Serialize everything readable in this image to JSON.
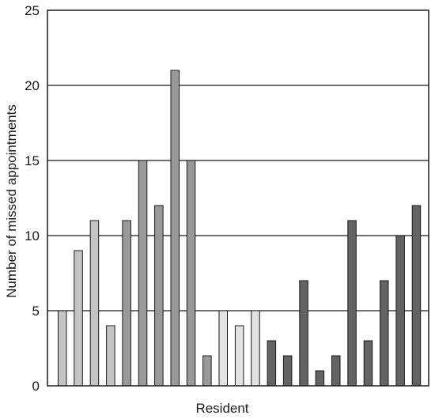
{
  "chart_data": {
    "type": "bar",
    "xlabel": "Resident",
    "ylabel": "Number of missed appointments",
    "ylim": [
      0,
      25
    ],
    "yticks": [
      0,
      5,
      10,
      15,
      20,
      25
    ],
    "grid": true,
    "values": [
      5,
      9,
      11,
      4,
      11,
      15,
      12,
      21,
      15,
      2,
      5,
      4,
      5,
      3,
      2,
      7,
      1,
      2,
      11,
      3,
      7,
      10,
      12
    ],
    "colors": [
      "#c4c4c4",
      "#c4c4c4",
      "#c4c4c4",
      "#c4c4c4",
      "#999999",
      "#999999",
      "#999999",
      "#999999",
      "#999999",
      "#999999",
      "#e2e2e2",
      "#e2e2e2",
      "#e2e2e2",
      "#636363",
      "#636363",
      "#636363",
      "#636363",
      "#636363",
      "#636363",
      "#636363",
      "#636363",
      "#636363",
      "#636363"
    ]
  }
}
